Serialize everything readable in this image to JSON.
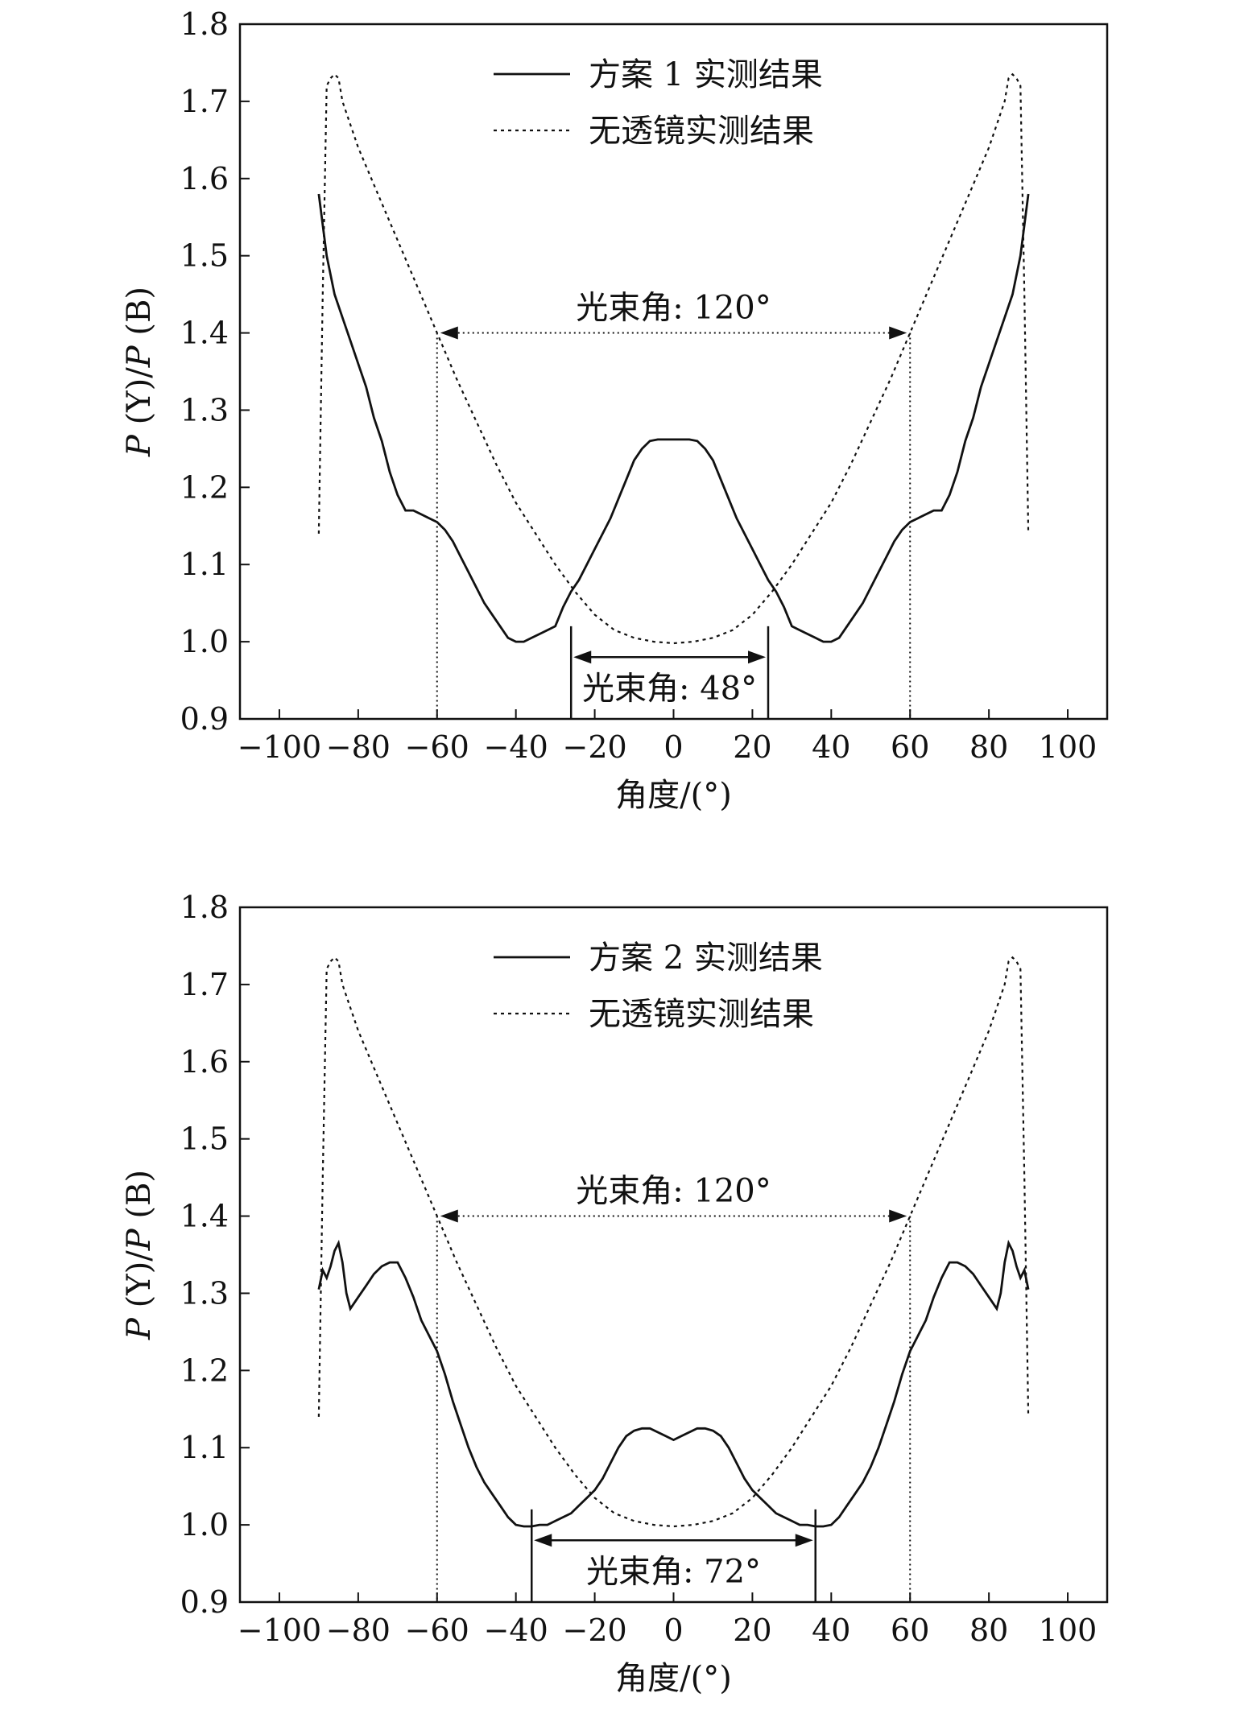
{
  "chart_data": [
    {
      "type": "line",
      "xlabel": "角度/(°)",
      "ylabel_parts": [
        "P",
        " (Y)/",
        "P",
        " (B)"
      ],
      "xlim": [
        -110,
        110
      ],
      "ylim": [
        0.9,
        1.8
      ],
      "xticks": [
        -100,
        -80,
        -60,
        -40,
        -20,
        0,
        20,
        40,
        60,
        80,
        100
      ],
      "yticks": [
        0.9,
        1.0,
        1.1,
        1.2,
        1.3,
        1.4,
        1.5,
        1.6,
        1.7,
        1.8
      ],
      "ytick_labels": [
        "0.9",
        "1.0",
        "1.1",
        "1.2",
        "1.3",
        "1.4",
        "1.5",
        "1.6",
        "1.7",
        "1.8"
      ],
      "grid": false,
      "legend_position": "top-center",
      "series": [
        {
          "name": "方案 1 实测结果",
          "style": "solid",
          "x": [
            -90,
            -88,
            -86,
            -84,
            -82,
            -80,
            -78,
            -76,
            -74,
            -72,
            -70,
            -68,
            -66,
            -64,
            -62,
            -60,
            -58,
            -56,
            -54,
            -52,
            -50,
            -48,
            -46,
            -44,
            -42,
            -40,
            -38,
            -36,
            -34,
            -32,
            -30,
            -28,
            -26,
            -24,
            -22,
            -20,
            -18,
            -16,
            -14,
            -12,
            -10,
            -8,
            -6,
            -4,
            -2,
            0,
            2,
            4,
            6,
            8,
            10,
            12,
            14,
            16,
            18,
            20,
            22,
            24,
            26,
            28,
            30,
            32,
            34,
            36,
            38,
            40,
            42,
            44,
            46,
            48,
            50,
            52,
            54,
            56,
            58,
            60,
            62,
            64,
            66,
            68,
            70,
            72,
            74,
            76,
            78,
            80,
            82,
            84,
            86,
            88,
            90
          ],
          "y": [
            1.58,
            1.5,
            1.45,
            1.42,
            1.39,
            1.36,
            1.33,
            1.29,
            1.26,
            1.22,
            1.19,
            1.17,
            1.17,
            1.165,
            1.16,
            1.155,
            1.145,
            1.13,
            1.11,
            1.09,
            1.07,
            1.05,
            1.035,
            1.02,
            1.005,
            1.0,
            1.0,
            1.005,
            1.01,
            1.015,
            1.02,
            1.045,
            1.065,
            1.08,
            1.1,
            1.12,
            1.14,
            1.16,
            1.185,
            1.21,
            1.235,
            1.25,
            1.26,
            1.262,
            1.262,
            1.262,
            1.262,
            1.262,
            1.26,
            1.25,
            1.235,
            1.21,
            1.185,
            1.16,
            1.14,
            1.12,
            1.1,
            1.08,
            1.065,
            1.045,
            1.02,
            1.015,
            1.01,
            1.005,
            1.0,
            1.0,
            1.005,
            1.02,
            1.035,
            1.05,
            1.07,
            1.09,
            1.11,
            1.13,
            1.145,
            1.155,
            1.16,
            1.165,
            1.17,
            1.17,
            1.19,
            1.22,
            1.26,
            1.29,
            1.33,
            1.36,
            1.39,
            1.42,
            1.45,
            1.5,
            1.58
          ]
        },
        {
          "name": "无透镜实测结果",
          "style": "dashed",
          "x": [
            -90,
            -89,
            -88,
            -87,
            -86,
            -85,
            -84,
            -82,
            -80,
            -75,
            -70,
            -65,
            -60,
            -55,
            -50,
            -45,
            -40,
            -35,
            -30,
            -25,
            -20,
            -15,
            -10,
            -5,
            0,
            5,
            10,
            15,
            20,
            25,
            30,
            35,
            40,
            45,
            50,
            55,
            60,
            65,
            70,
            75,
            80,
            82,
            84,
            85,
            86,
            87,
            88,
            89,
            90
          ],
          "y": [
            1.14,
            1.45,
            1.72,
            1.73,
            1.735,
            1.73,
            1.7,
            1.67,
            1.64,
            1.58,
            1.52,
            1.46,
            1.4,
            1.34,
            1.285,
            1.23,
            1.18,
            1.14,
            1.1,
            1.065,
            1.035,
            1.015,
            1.005,
            1.0,
            0.998,
            1.0,
            1.005,
            1.015,
            1.035,
            1.065,
            1.1,
            1.14,
            1.18,
            1.23,
            1.285,
            1.34,
            1.4,
            1.46,
            1.52,
            1.58,
            1.64,
            1.67,
            1.7,
            1.73,
            1.735,
            1.73,
            1.72,
            1.45,
            1.14
          ]
        }
      ],
      "annotations": {
        "wide_beam": {
          "label": "光束角: 120°",
          "x_from": -60,
          "x_to": 60,
          "y": 1.4
        },
        "narrow_beam": {
          "label": "光束角: 48°",
          "x_from": -26,
          "x_to": 24,
          "y": 0.98
        }
      }
    },
    {
      "type": "line",
      "xlabel": "角度/(°)",
      "ylabel_parts": [
        "P",
        " (Y)/",
        "P",
        " (B)"
      ],
      "xlim": [
        -110,
        110
      ],
      "ylim": [
        0.9,
        1.8
      ],
      "xticks": [
        -100,
        -80,
        -60,
        -40,
        -20,
        0,
        20,
        40,
        60,
        80,
        100
      ],
      "yticks": [
        0.9,
        1.0,
        1.1,
        1.2,
        1.3,
        1.4,
        1.5,
        1.6,
        1.7,
        1.8
      ],
      "ytick_labels": [
        "0.9",
        "1.0",
        "1.1",
        "1.2",
        "1.3",
        "1.4",
        "1.5",
        "1.6",
        "1.7",
        "1.8"
      ],
      "grid": false,
      "legend_position": "top-center",
      "series": [
        {
          "name": "方案 2 实测结果",
          "style": "solid",
          "x": [
            -90,
            -89,
            -88,
            -87,
            -86,
            -85,
            -84,
            -83,
            -82,
            -80,
            -78,
            -76,
            -74,
            -72,
            -70,
            -68,
            -66,
            -64,
            -62,
            -60,
            -58,
            -56,
            -54,
            -52,
            -50,
            -48,
            -46,
            -44,
            -42,
            -40,
            -38,
            -36,
            -34,
            -32,
            -30,
            -28,
            -26,
            -24,
            -22,
            -20,
            -18,
            -16,
            -14,
            -12,
            -10,
            -8,
            -6,
            -4,
            -2,
            0,
            2,
            4,
            6,
            8,
            10,
            12,
            14,
            16,
            18,
            20,
            22,
            24,
            26,
            28,
            30,
            32,
            34,
            36,
            38,
            40,
            42,
            44,
            46,
            48,
            50,
            52,
            54,
            56,
            58,
            60,
            62,
            64,
            66,
            68,
            70,
            72,
            74,
            76,
            78,
            80,
            82,
            83,
            84,
            85,
            86,
            87,
            88,
            89,
            90
          ],
          "y": [
            1.305,
            1.33,
            1.32,
            1.335,
            1.355,
            1.365,
            1.34,
            1.3,
            1.28,
            1.295,
            1.31,
            1.325,
            1.335,
            1.34,
            1.34,
            1.32,
            1.295,
            1.265,
            1.245,
            1.225,
            1.195,
            1.16,
            1.13,
            1.1,
            1.075,
            1.055,
            1.04,
            1.025,
            1.01,
            1.0,
            0.998,
            0.998,
            1.0,
            1.0,
            1.005,
            1.01,
            1.015,
            1.025,
            1.035,
            1.045,
            1.06,
            1.08,
            1.1,
            1.115,
            1.122,
            1.125,
            1.125,
            1.12,
            1.115,
            1.11,
            1.1,
            1.085,
            1.07,
            1.055,
            1.045,
            1.035,
            1.025,
            1.015,
            1.01,
            1.005,
            1.0,
            1.0,
            0.998,
            0.998,
            1.0,
            1.01,
            1.025,
            1.04,
            1.055,
            1.075,
            1.1,
            1.13,
            1.16,
            1.195,
            1.225,
            1.245,
            1.265,
            1.295,
            1.32,
            1.34,
            1.34,
            1.335,
            1.325,
            1.31,
            1.295,
            1.28,
            1.3,
            1.34,
            1.365,
            1.355,
            1.335,
            1.32,
            1.33,
            1.305,
            1.305,
            1.305,
            1.305,
            1.305,
            1.305
          ],
          "x_note": "symmetric"
        },
        {
          "name": "无透镜实测结果",
          "style": "dashed",
          "x": [
            -90,
            -89,
            -88,
            -87,
            -86,
            -85,
            -84,
            -82,
            -80,
            -75,
            -70,
            -65,
            -60,
            -55,
            -50,
            -45,
            -40,
            -35,
            -30,
            -25,
            -20,
            -15,
            -10,
            -5,
            0,
            5,
            10,
            15,
            20,
            25,
            30,
            35,
            40,
            45,
            50,
            55,
            60,
            65,
            70,
            75,
            80,
            82,
            84,
            85,
            86,
            87,
            88,
            89,
            90
          ],
          "y": [
            1.14,
            1.45,
            1.72,
            1.73,
            1.735,
            1.73,
            1.7,
            1.67,
            1.64,
            1.58,
            1.52,
            1.46,
            1.4,
            1.34,
            1.285,
            1.23,
            1.18,
            1.14,
            1.1,
            1.065,
            1.035,
            1.015,
            1.005,
            1.0,
            0.998,
            1.0,
            1.005,
            1.015,
            1.035,
            1.065,
            1.1,
            1.14,
            1.18,
            1.23,
            1.285,
            1.34,
            1.4,
            1.46,
            1.52,
            1.58,
            1.64,
            1.67,
            1.7,
            1.73,
            1.735,
            1.73,
            1.72,
            1.45,
            1.14
          ]
        }
      ],
      "annotations": {
        "wide_beam": {
          "label": "光束角: 120°",
          "x_from": -60,
          "x_to": 60,
          "y": 1.4
        },
        "narrow_beam": {
          "label": "光束角: 72°",
          "x_from": -36,
          "x_to": 36,
          "y": 0.98
        }
      }
    }
  ]
}
